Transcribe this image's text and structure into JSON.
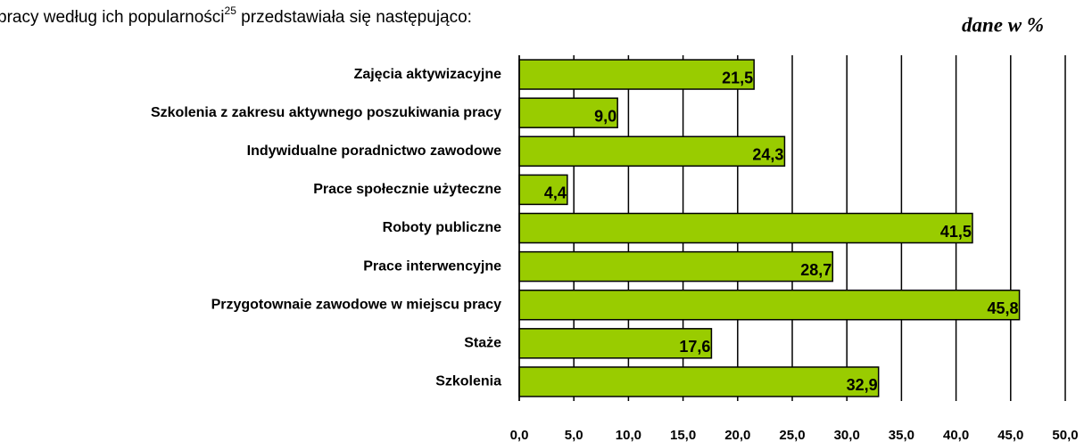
{
  "intro": {
    "before": "pracy według ich popularności",
    "sup": "25",
    "after": " przedstawiała się następująco:"
  },
  "chart_data": {
    "type": "hbar",
    "unit_label": "dane w %",
    "categories": [
      "Zajęcia aktywizacyjne",
      "Szkolenia z zakresu aktywnego poszukiwania pracy",
      "Indywidualne poradnictwo zawodowe",
      "Prace społecznie użyteczne",
      "Roboty publiczne",
      "Prace interwencyjne",
      "Przygotownaie zawodowe w miejscu pracy",
      "Staże",
      "Szkolenia"
    ],
    "values": [
      21.5,
      9.0,
      24.3,
      4.4,
      41.5,
      28.7,
      45.8,
      17.6,
      32.9
    ],
    "value_labels": [
      "21,5",
      "9,0",
      "24,3",
      "4,4",
      "41,5",
      "28,7",
      "45,8",
      "17,6",
      "32,9"
    ],
    "color": "#99cc00",
    "xlim": [
      0,
      50
    ],
    "xticks": [
      {
        "value": 0,
        "label": "0,0"
      },
      {
        "value": 5,
        "label": "5,0"
      },
      {
        "value": 10,
        "label": "10,0"
      },
      {
        "value": 15,
        "label": "15,0"
      },
      {
        "value": 20,
        "label": "20,0"
      },
      {
        "value": 25,
        "label": "25,0"
      },
      {
        "value": 30,
        "label": "30,0"
      },
      {
        "value": 35,
        "label": "35,0"
      },
      {
        "value": 40,
        "label": "40,0"
      },
      {
        "value": 45,
        "label": "45,0"
      },
      {
        "value": 50,
        "label": "50,0"
      }
    ],
    "grid": true
  }
}
